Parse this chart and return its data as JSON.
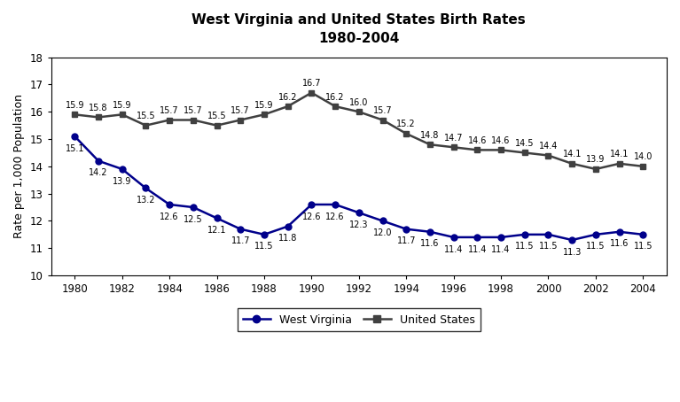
{
  "title_line1": "West Virginia and United States Birth Rates",
  "title_line2": "1980-2004",
  "ylabel": "Rate per 1,000 Population",
  "years": [
    1980,
    1981,
    1982,
    1983,
    1984,
    1985,
    1986,
    1987,
    1988,
    1989,
    1990,
    1991,
    1992,
    1993,
    1994,
    1995,
    1996,
    1997,
    1998,
    1999,
    2000,
    2001,
    2002,
    2003,
    2004
  ],
  "wv_values": [
    15.1,
    14.2,
    13.9,
    13.2,
    12.6,
    12.5,
    12.1,
    11.7,
    11.5,
    11.8,
    12.6,
    12.6,
    12.3,
    12.0,
    11.7,
    11.6,
    11.4,
    11.4,
    11.4,
    11.5,
    11.5,
    11.3,
    11.5,
    11.6,
    11.5
  ],
  "us_values": [
    15.9,
    15.8,
    15.9,
    15.5,
    15.7,
    15.7,
    15.5,
    15.7,
    15.9,
    16.2,
    16.7,
    16.2,
    16.0,
    15.7,
    15.2,
    14.8,
    14.7,
    14.6,
    14.6,
    14.5,
    14.4,
    14.1,
    13.9,
    14.1,
    14.0
  ],
  "ylim": [
    10,
    18
  ],
  "yticks": [
    10,
    11,
    12,
    13,
    14,
    15,
    16,
    17,
    18
  ],
  "xticks": [
    1980,
    1982,
    1984,
    1986,
    1988,
    1990,
    1992,
    1994,
    1996,
    1998,
    2000,
    2002,
    2004
  ],
  "wv_color": "#00008B",
  "us_color": "#404040",
  "background_color": "#ffffff",
  "legend_labels": [
    "West Virginia",
    "United States"
  ],
  "annotation_fontsize": 7.0
}
